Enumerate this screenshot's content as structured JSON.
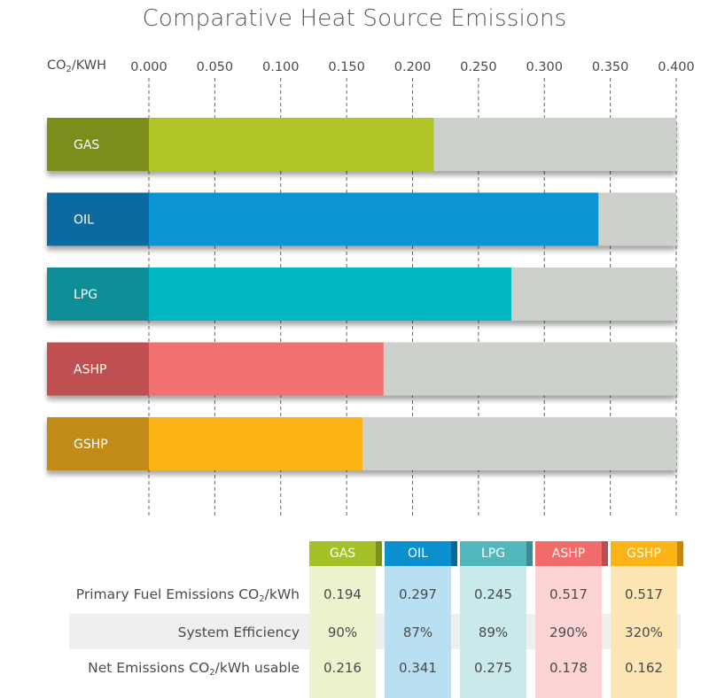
{
  "chart_data": {
    "type": "bar",
    "orientation": "horizontal",
    "title": "Comparative Heat Source Emissions",
    "axis_unit_label": "CO2/KWH",
    "xlim": [
      0,
      0.4
    ],
    "ticks": [
      "0.000",
      "0.050",
      "0.100",
      "0.150",
      "0.200",
      "0.250",
      "0.300",
      "0.350",
      "0.400"
    ],
    "grid": true,
    "categories": [
      "GAS",
      "OIL",
      "LPG",
      "ASHP",
      "GSHP"
    ],
    "values": [
      0.216,
      0.341,
      0.275,
      0.178,
      0.162
    ],
    "colors": [
      "#b0c428",
      "#0a94d3",
      "#00b7c2",
      "#f07170",
      "#fcb316"
    ],
    "label_colors": [
      "#7d8d1e",
      "#096aa0",
      "#0d8e97",
      "#c05051",
      "#c28a12"
    ],
    "track_color": "#ccd1cb"
  },
  "table": {
    "columns": [
      "GAS",
      "OIL",
      "LPG",
      "ASHP",
      "GSHP"
    ],
    "header_colors": [
      "#a5c12a",
      "#0a8fcf",
      "#52b6bd",
      "#f26b6b",
      "#fcb316"
    ],
    "fold_colors": [
      "#7c8f1f",
      "#08679a",
      "#3e8b90",
      "#b74e4f",
      "#c18912"
    ],
    "column_bg": [
      "#eef3cf",
      "#b9dff2",
      "#c9e9eb",
      "#fdd4d3",
      "#fee6b4"
    ],
    "rows": [
      {
        "label_pre": "Primary Fuel Emissions CO",
        "label_sub": "2",
        "label_post": "/kWh",
        "values": [
          "0.194",
          "0.297",
          "0.245",
          "0.517",
          "0.517"
        ]
      },
      {
        "label_pre": "System Efficiency",
        "label_sub": "",
        "label_post": "",
        "values": [
          "90%",
          "87%",
          "89%",
          "290%",
          "320%"
        ]
      },
      {
        "label_pre": "Net Emissions CO",
        "label_sub": "2",
        "label_post": "/kWh usable",
        "values": [
          "0.216",
          "0.341",
          "0.275",
          "0.178",
          "0.162"
        ]
      }
    ]
  }
}
